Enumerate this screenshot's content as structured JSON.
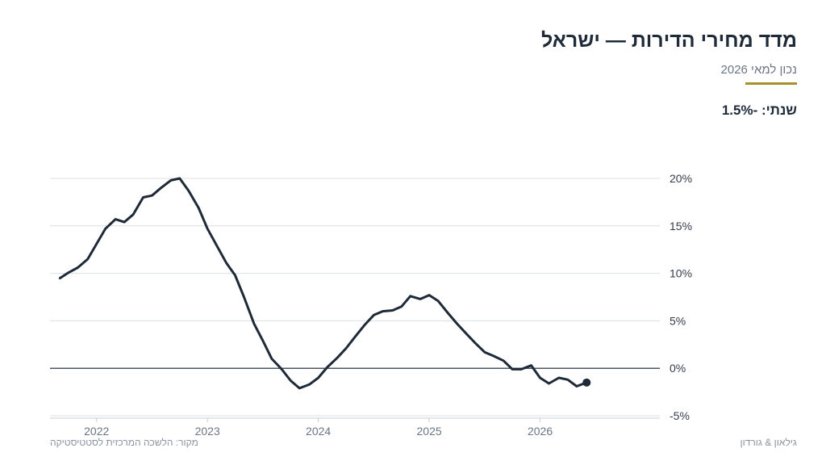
{
  "header": {
    "title": "מדד מחירי הדירות — ישראל",
    "subtitle": "נכון למאי 2026",
    "stat": "שנתי: -1.5%"
  },
  "footer": {
    "source": "מקור: הלשכה המרכזית לסטטיסטיקה",
    "brand": "גילאון & גורדון"
  },
  "colors": {
    "line": "#1e2a38",
    "accent": "#a8902e",
    "grid": "#dcdfe3",
    "zero_line": "#4a5866"
  },
  "chart_data": {
    "type": "line",
    "title": "מדד מחירי הדירות — ישראל",
    "ylim": [
      -5,
      20
    ],
    "y_ticks": [
      20,
      15,
      10,
      5,
      0,
      -5
    ],
    "y_tick_labels": [
      "20%",
      "15%",
      "10%",
      "5%",
      "0%",
      "-5%"
    ],
    "x_ticks": [
      2022,
      2023,
      2024,
      2025,
      2026
    ],
    "x_tick_labels": [
      "2022",
      "2023",
      "2024",
      "2025",
      "2026"
    ],
    "xlim": [
      2021.58,
      2027.08
    ],
    "grid": true,
    "legend": "none",
    "series": [
      {
        "x": [
          2021.67,
          2021.75,
          2021.83,
          2021.92,
          2022.0,
          2022.08,
          2022.17,
          2022.25,
          2022.33,
          2022.42,
          2022.5,
          2022.58,
          2022.67,
          2022.75,
          2022.83,
          2022.92,
          2023.0,
          2023.08,
          2023.17,
          2023.25,
          2023.33,
          2023.42,
          2023.5,
          2023.58,
          2023.67,
          2023.75,
          2023.83,
          2023.92,
          2024.0,
          2024.08,
          2024.17,
          2024.25,
          2024.33,
          2024.42,
          2024.5,
          2024.58,
          2024.67,
          2024.75,
          2024.83,
          2024.92,
          2025.0,
          2025.08,
          2025.17,
          2025.25,
          2025.33,
          2025.42,
          2025.5,
          2025.58,
          2025.67,
          2025.75,
          2025.83,
          2025.92,
          2026.0,
          2026.08,
          2026.17,
          2026.25,
          2026.33,
          2026.42
        ],
        "y": [
          9.5,
          10.1,
          10.6,
          11.5,
          13.1,
          14.7,
          15.7,
          15.4,
          16.2,
          18.0,
          18.2,
          19.0,
          19.8,
          20.0,
          18.7,
          16.9,
          14.7,
          13.0,
          11.1,
          9.8,
          7.5,
          4.7,
          2.9,
          1.0,
          -0.1,
          -1.3,
          -2.1,
          -1.7,
          -1.0,
          0.1,
          1.1,
          2.1,
          3.3,
          4.6,
          5.6,
          6.0,
          6.1,
          6.5,
          7.6,
          7.3,
          7.7,
          7.1,
          5.8,
          4.7,
          3.7,
          2.6,
          1.7,
          1.3,
          0.8,
          -0.1,
          -0.1,
          0.3,
          -1.0,
          -1.6,
          -1.0,
          -1.2,
          -1.9,
          -1.5
        ]
      }
    ],
    "end_marker": {
      "x": 2026.42,
      "y": -1.5
    }
  }
}
